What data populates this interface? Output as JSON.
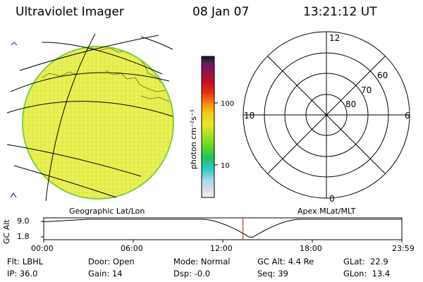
{
  "header": {
    "title": "Ultraviolet Imager",
    "date": "08 Jan 07",
    "time": "13:21:12 UT"
  },
  "colorbar": {
    "unit_label": "photon cm⁻²s⁻¹",
    "ticks": [
      "100",
      "10"
    ]
  },
  "polar_plot": {
    "mlt_labels": [
      "12",
      "18",
      "6",
      "0"
    ],
    "lat_labels": [
      "60",
      "70",
      "80"
    ]
  },
  "projection_labels": {
    "left": "Geographic Lat/Lon",
    "right": "Apex  MLat/MLT"
  },
  "altitude_plot": {
    "axis_label": "GC Alt",
    "y_ticks": [
      "9.0",
      "1.8"
    ],
    "x_ticks": [
      "00:00",
      "06:00",
      "12:00",
      "18:00",
      "23:59"
    ],
    "current_time_hours": 13.35
  },
  "status": {
    "row1": [
      {
        "label": "Flt:",
        "value": "LBHL"
      },
      {
        "label": "Door:",
        "value": "Open"
      },
      {
        "label": "Mode:",
        "value": "Normal"
      },
      {
        "label": "GC Alt:",
        "value": "4.4 Re"
      },
      {
        "label": "GLat:",
        "value": "22.9"
      }
    ],
    "row2": [
      {
        "label": "IP:",
        "value": "36.0"
      },
      {
        "label": "Gain:",
        "value": "14"
      },
      {
        "label": "Dsp:",
        "value": "-0.0"
      },
      {
        "label": "Seq:",
        "value": "39"
      },
      {
        "label": "GLon:",
        "value": "13.4"
      }
    ]
  },
  "colors": {
    "disk_fill": "#e8f048",
    "disk_edge": "#9ad83a",
    "time_marker": "#d03030"
  }
}
